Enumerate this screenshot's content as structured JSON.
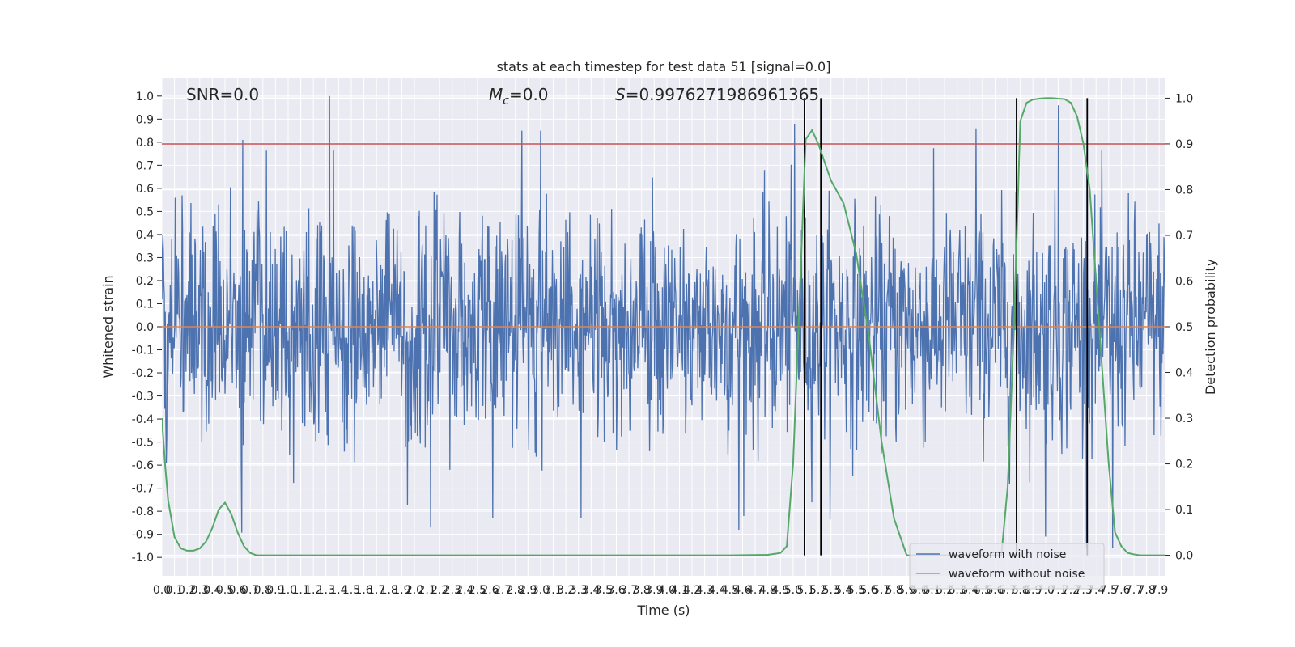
{
  "chart_data": {
    "type": "line",
    "title": "stats at each timestep for test data 51 [signal=0.0]",
    "xlabel": "Time (s)",
    "ylabel": "Whitened strain",
    "y2label": "Detection probability",
    "xlim": [
      0.0,
      7.95
    ],
    "ylim": [
      -1.08,
      1.08
    ],
    "y2lim": [
      -0.045,
      1.045
    ],
    "x_ticks": [
      "0.0",
      "0.1",
      "0.2",
      "0.3",
      "0.4",
      "0.5",
      "0.6",
      "0.7",
      "0.8",
      "0.9",
      "1.0",
      "1.1",
      "1.2",
      "1.3",
      "1.4",
      "1.5",
      "1.6",
      "1.7",
      "1.8",
      "1.9",
      "2.0",
      "2.1",
      "2.2",
      "2.3",
      "2.4",
      "2.5",
      "2.6",
      "2.7",
      "2.8",
      "2.9",
      "3.0",
      "3.1",
      "3.2",
      "3.3",
      "3.4",
      "3.5",
      "3.6",
      "3.7",
      "3.8",
      "3.9",
      "4.0",
      "4.1",
      "4.2",
      "4.3",
      "4.4",
      "4.5",
      "4.6",
      "4.7",
      "4.8",
      "4.9",
      "5.0",
      "5.1",
      "5.2",
      "5.3",
      "5.4",
      "5.5",
      "5.6",
      "5.7",
      "5.8",
      "5.9",
      "6.0",
      "6.1",
      "6.2",
      "6.3",
      "6.4",
      "6.5",
      "6.6",
      "6.7",
      "6.8",
      "6.9",
      "7.0",
      "7.1",
      "7.2",
      "7.3",
      "7.4",
      "7.5",
      "7.6",
      "7.7",
      "7.8",
      "7.9"
    ],
    "y_ticks": [
      "-1.0",
      "-0.9",
      "-0.8",
      "-0.7",
      "-0.6",
      "-0.5",
      "-0.4",
      "-0.3",
      "-0.2",
      "-0.1",
      "0.0",
      "0.1",
      "0.2",
      "0.3",
      "0.4",
      "0.5",
      "0.6",
      "0.7",
      "0.8",
      "0.9",
      "1.0"
    ],
    "y2_ticks": [
      "0.0",
      "0.1",
      "0.2",
      "0.3",
      "0.4",
      "0.5",
      "0.6",
      "0.7",
      "0.8",
      "0.9",
      "1.0"
    ],
    "annotations": {
      "snr": "SNR=0.0",
      "mc_symbol": "M",
      "mc_sub": "c",
      "mc_value": "=0.0",
      "s_symbol": "S",
      "s_value": "=0.9976271986961365"
    },
    "threshold": {
      "value": 0.9,
      "axis": "y2",
      "color": "#c44e52"
    },
    "vertical_lines": [
      5.09,
      5.22,
      6.77,
      7.33
    ],
    "legend": {
      "placement": "lower-right",
      "entries": [
        {
          "name": "waveform with noise",
          "color": "#4c72b0"
        },
        {
          "name": "waveform without noise",
          "color": "#dd8452"
        }
      ]
    },
    "series": [
      {
        "name": "waveform with noise",
        "color": "#4c72b0",
        "kind": "noise",
        "sample_rate": 256,
        "approx_envelope": [
          -0.96,
          1.0
        ],
        "peaks": [
          {
            "x": 1.33,
            "y": 1.0
          },
          {
            "x": 0.64,
            "y": 0.81
          },
          {
            "x": 2.85,
            "y": 0.85
          },
          {
            "x": 3.0,
            "y": 0.85
          },
          {
            "x": 5.01,
            "y": 0.88
          },
          {
            "x": 7.1,
            "y": 0.96
          },
          {
            "x": 6.45,
            "y": 0.86
          },
          {
            "x": 7.33,
            "y": 0.82
          },
          {
            "x": 2.13,
            "y": -0.87
          },
          {
            "x": 2.62,
            "y": -0.83
          },
          {
            "x": 3.32,
            "y": -0.83
          },
          {
            "x": 4.57,
            "y": -0.88
          },
          {
            "x": 7.53,
            "y": -0.96
          },
          {
            "x": 7.0,
            "y": -0.91
          }
        ]
      },
      {
        "name": "waveform without noise",
        "color": "#dd8452",
        "kind": "constant",
        "value": 0.0
      },
      {
        "name": "detection probability",
        "color": "#55a868",
        "axis": "y2",
        "x": [
          0.0,
          0.025,
          0.05,
          0.1,
          0.15,
          0.2,
          0.25,
          0.3,
          0.35,
          0.4,
          0.45,
          0.5,
          0.55,
          0.6,
          0.65,
          0.7,
          0.75,
          0.8,
          0.85,
          0.9,
          1.0,
          1.5,
          2.0,
          3.0,
          4.0,
          4.5,
          4.8,
          4.9,
          4.95,
          5.0,
          5.05,
          5.1,
          5.15,
          5.2,
          5.25,
          5.3,
          5.4,
          5.5,
          5.6,
          5.7,
          5.8,
          5.9,
          6.0,
          6.1,
          6.2,
          6.3,
          6.4,
          6.5,
          6.6,
          6.65,
          6.7,
          6.75,
          6.8,
          6.85,
          6.9,
          6.95,
          7.0,
          7.05,
          7.1,
          7.15,
          7.2,
          7.25,
          7.3,
          7.35,
          7.4,
          7.45,
          7.5,
          7.55,
          7.6,
          7.65,
          7.7,
          7.75,
          7.8,
          7.85,
          7.9,
          7.95
        ],
        "values": [
          0.3,
          0.2,
          0.12,
          0.04,
          0.015,
          0.01,
          0.01,
          0.015,
          0.03,
          0.06,
          0.1,
          0.115,
          0.09,
          0.05,
          0.02,
          0.005,
          0.0,
          0.0,
          0.0,
          0.0,
          0.0,
          0.0,
          0.0,
          0.0,
          0.0,
          0.0,
          0.001,
          0.005,
          0.02,
          0.2,
          0.55,
          0.91,
          0.93,
          0.9,
          0.86,
          0.82,
          0.77,
          0.66,
          0.48,
          0.25,
          0.08,
          0.0,
          0.0,
          0.0,
          0.0,
          0.0,
          0.0,
          0.0,
          0.0,
          0.0,
          0.15,
          0.5,
          0.95,
          0.99,
          0.997,
          0.999,
          1.0,
          1.0,
          0.999,
          0.998,
          0.99,
          0.96,
          0.9,
          0.8,
          0.6,
          0.4,
          0.2,
          0.05,
          0.02,
          0.005,
          0.002,
          0.0,
          0.0,
          0.0,
          0.0,
          0.0
        ]
      }
    ]
  }
}
